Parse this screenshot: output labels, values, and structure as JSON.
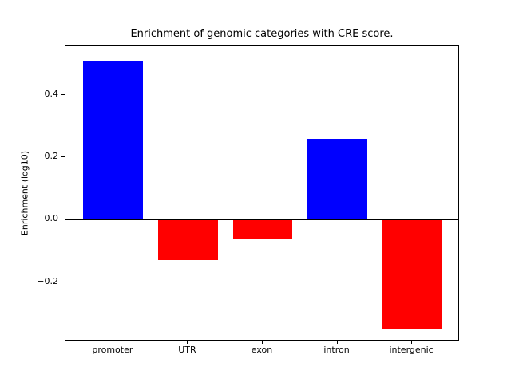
{
  "chart_data": {
    "type": "bar",
    "title": "Enrichment of genomic categories with CRE score.",
    "xlabel": "",
    "ylabel": "Enrichment (log10)",
    "categories": [
      "promoter",
      "UTR",
      "exon",
      "intron",
      "intergenic"
    ],
    "values": [
      0.51,
      -0.13,
      -0.06,
      0.26,
      -0.35
    ],
    "bar_colors": [
      "#0000ff",
      "#ff0000",
      "#ff0000",
      "#0000ff",
      "#ff0000"
    ],
    "positive_color": "#0000ff",
    "negative_color": "#ff0000",
    "yticks": [
      {
        "label": "0.4",
        "value": 0.4
      },
      {
        "label": "0.2",
        "value": 0.2
      },
      {
        "label": "0.0",
        "value": 0.0
      },
      {
        "label": "−0.2",
        "value": -0.2
      }
    ],
    "ylim": [
      -0.39,
      0.555
    ],
    "xlim": [
      -0.64,
      4.64
    ],
    "bar_width_fraction": 0.8,
    "zero_line": true,
    "grid": false,
    "legend": null,
    "background_color": "#ffffff",
    "axis_color": "#000000"
  }
}
